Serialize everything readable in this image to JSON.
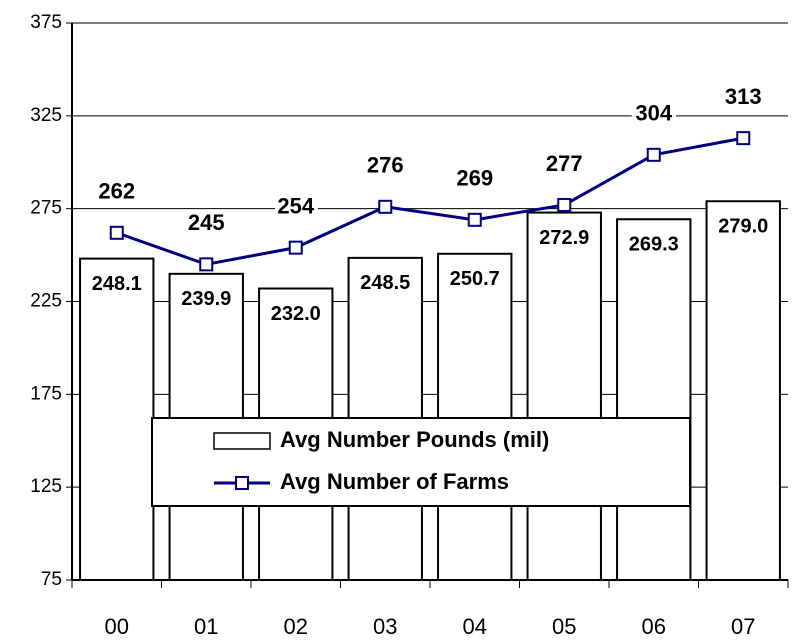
{
  "chart_data": {
    "type": "combo",
    "categories": [
      "00",
      "01",
      "02",
      "03",
      "04",
      "05",
      "06",
      "07"
    ],
    "series": [
      {
        "name": "Avg Number Pounds (mil)",
        "type": "bar",
        "color": "#ffffff",
        "values": [
          248.1,
          239.9,
          232.0,
          248.5,
          250.7,
          272.9,
          269.3,
          279.0
        ],
        "value_labels": [
          "248.1",
          "239.9",
          "232.0",
          "248.5",
          "250.7",
          "272.9",
          "269.3",
          "279.0"
        ]
      },
      {
        "name": "Avg Number of Farms",
        "type": "line",
        "color": "#000080",
        "values": [
          262,
          245,
          254,
          276,
          269,
          277,
          304,
          313
        ]
      }
    ],
    "ylim": [
      75,
      375
    ],
    "yticks": [
      75,
      125,
      175,
      225,
      275,
      325,
      375
    ],
    "grid": true,
    "legend": "lower center"
  }
}
